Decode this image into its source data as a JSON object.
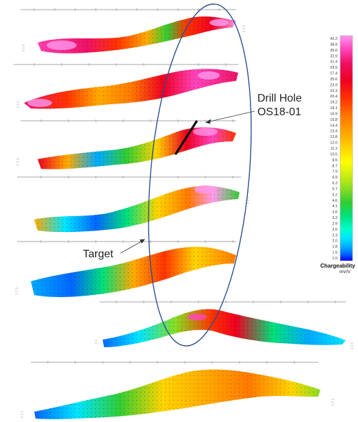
{
  "annotations": {
    "drill_hole_line1": "Drill Hole",
    "drill_hole_line2": "OS18-01",
    "target": "Target"
  },
  "colorbar": {
    "title": "Chargeability",
    "units": "mV/V",
    "ticks": [
      "42.2",
      "38.8",
      "35.6",
      "32.9",
      "31.4",
      "29.5",
      "27.4",
      "25.6",
      "23.9",
      "22.3",
      "20.4",
      "19.2",
      "18.1",
      "16.9",
      "15.8",
      "14.4",
      "13.4",
      "12.8",
      "12.0",
      "11.2",
      "10.5",
      "9.5",
      "8.7",
      "7.9",
      "6.9",
      "6.3",
      "5.7",
      "5.2",
      "4.6",
      "4.1",
      "3.6",
      "3.2",
      "2.9",
      "2.6",
      "2.3",
      "2.0",
      "1.8",
      "1.5",
      "1.0"
    ],
    "colors": [
      "#0000ff",
      "#0066ff",
      "#00aaff",
      "#00e5ff",
      "#00ffcc",
      "#00e07a",
      "#33cc33",
      "#88dd22",
      "#ccee11",
      "#ffff00",
      "#ffd400",
      "#ffaa00",
      "#ff7a00",
      "#ff3300",
      "#ee0022",
      "#ee1166",
      "#ff44bb",
      "#ff99ee"
    ]
  },
  "sections": [
    {
      "name": "section-1"
    },
    {
      "name": "section-2"
    },
    {
      "name": "section-3"
    },
    {
      "name": "section-4"
    },
    {
      "name": "section-5"
    },
    {
      "name": "section-6"
    },
    {
      "name": "section-7"
    }
  ]
}
